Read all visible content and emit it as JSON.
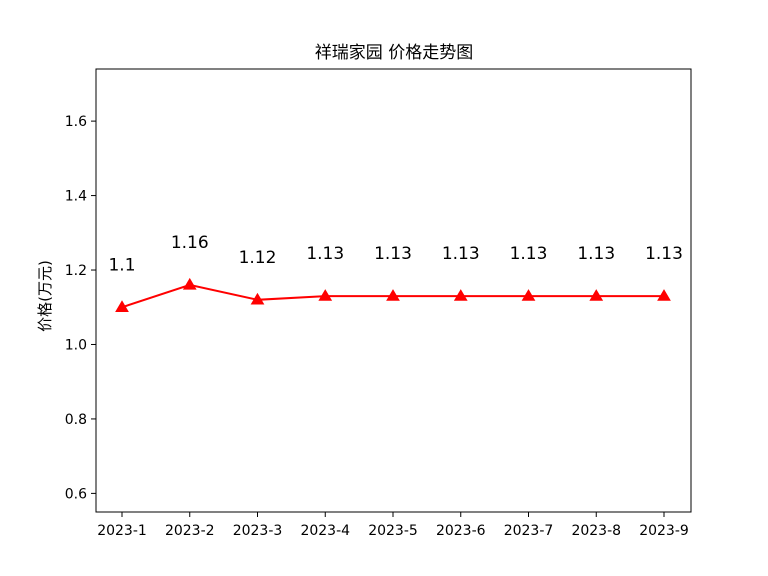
{
  "chart_data": {
    "type": "line",
    "title": "祥瑞家园 价格走势图",
    "xlabel": "",
    "ylabel": "价格(万元)",
    "categories": [
      "2023-1",
      "2023-2",
      "2023-3",
      "2023-4",
      "2023-5",
      "2023-6",
      "2023-7",
      "2023-8",
      "2023-9"
    ],
    "series": [
      {
        "values": [
          1.1,
          1.16,
          1.12,
          1.13,
          1.13,
          1.13,
          1.13,
          1.13,
          1.13
        ],
        "data_labels": [
          "1.1",
          "1.16",
          "1.12",
          "1.13",
          "1.13",
          "1.13",
          "1.13",
          "1.13",
          "1.13"
        ],
        "color": "#ff0000",
        "marker": "triangle-up"
      }
    ],
    "ylim": [
      0.55,
      1.74
    ],
    "yticks": [
      0.6,
      0.8,
      1.0,
      1.2,
      1.4,
      1.6
    ],
    "ytick_labels": [
      "0.6",
      "0.8",
      "1.0",
      "1.2",
      "1.4",
      "1.6"
    ],
    "grid": false,
    "legend": "none"
  }
}
